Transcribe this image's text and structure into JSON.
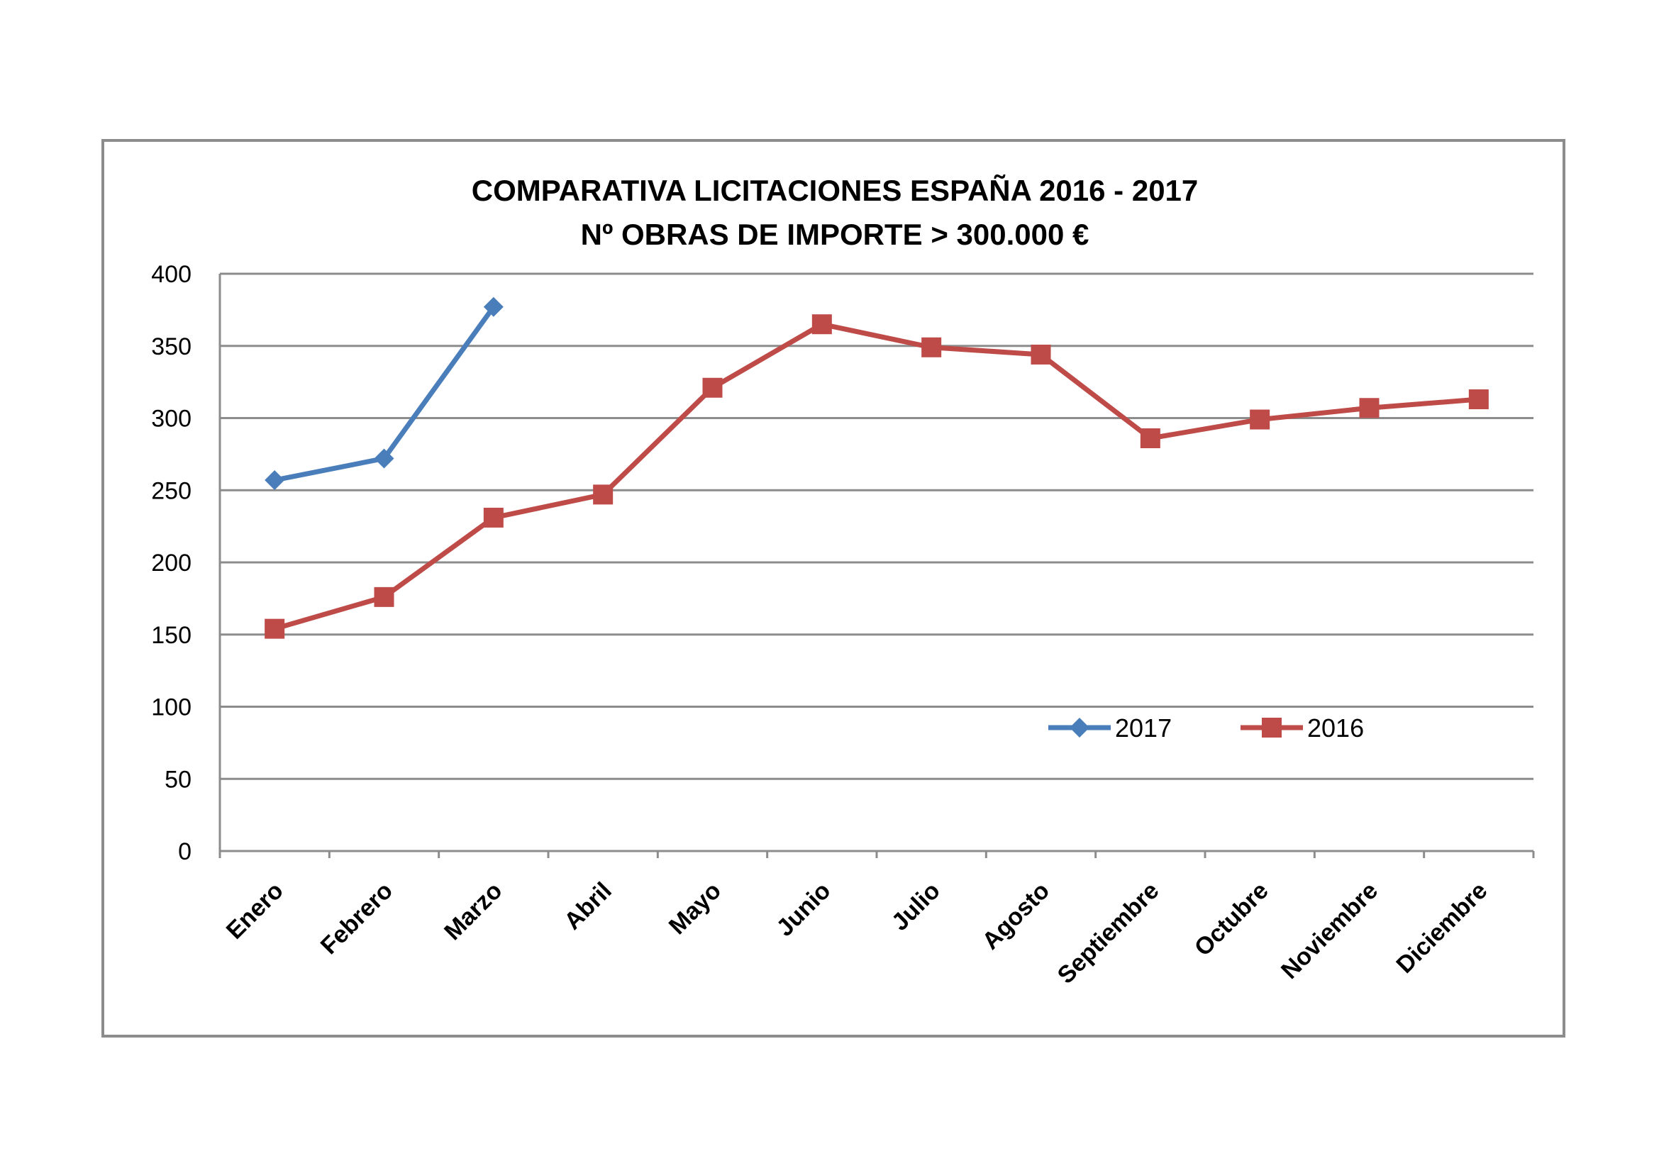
{
  "chart_data": {
    "type": "line",
    "title": "COMPARATIVA LICITACIONES ESPAÑA 2016 - 2017",
    "subtitle": "Nº OBRAS DE IMPORTE > 300.000 €",
    "xlabel": "",
    "ylabel": "",
    "categories": [
      "Enero",
      "Febrero",
      "Marzo",
      "Abril",
      "Mayo",
      "Junio",
      "Julio",
      "Agosto",
      "Septiembre",
      "Octubre",
      "Noviembre",
      "Diciembre"
    ],
    "ylim": [
      0,
      400
    ],
    "yticks": [
      0,
      50,
      100,
      150,
      200,
      250,
      300,
      350,
      400
    ],
    "grid": true,
    "legend_position": "inside-right",
    "series": [
      {
        "name": "2017",
        "color": "#4a7ebb",
        "marker": "diamond",
        "values": [
          257,
          272,
          377,
          null,
          null,
          null,
          null,
          null,
          null,
          null,
          null,
          null
        ]
      },
      {
        "name": "2016",
        "color": "#be4b48",
        "marker": "square",
        "values": [
          154,
          176,
          231,
          247,
          321,
          365,
          349,
          344,
          286,
          299,
          307,
          313
        ]
      }
    ]
  }
}
